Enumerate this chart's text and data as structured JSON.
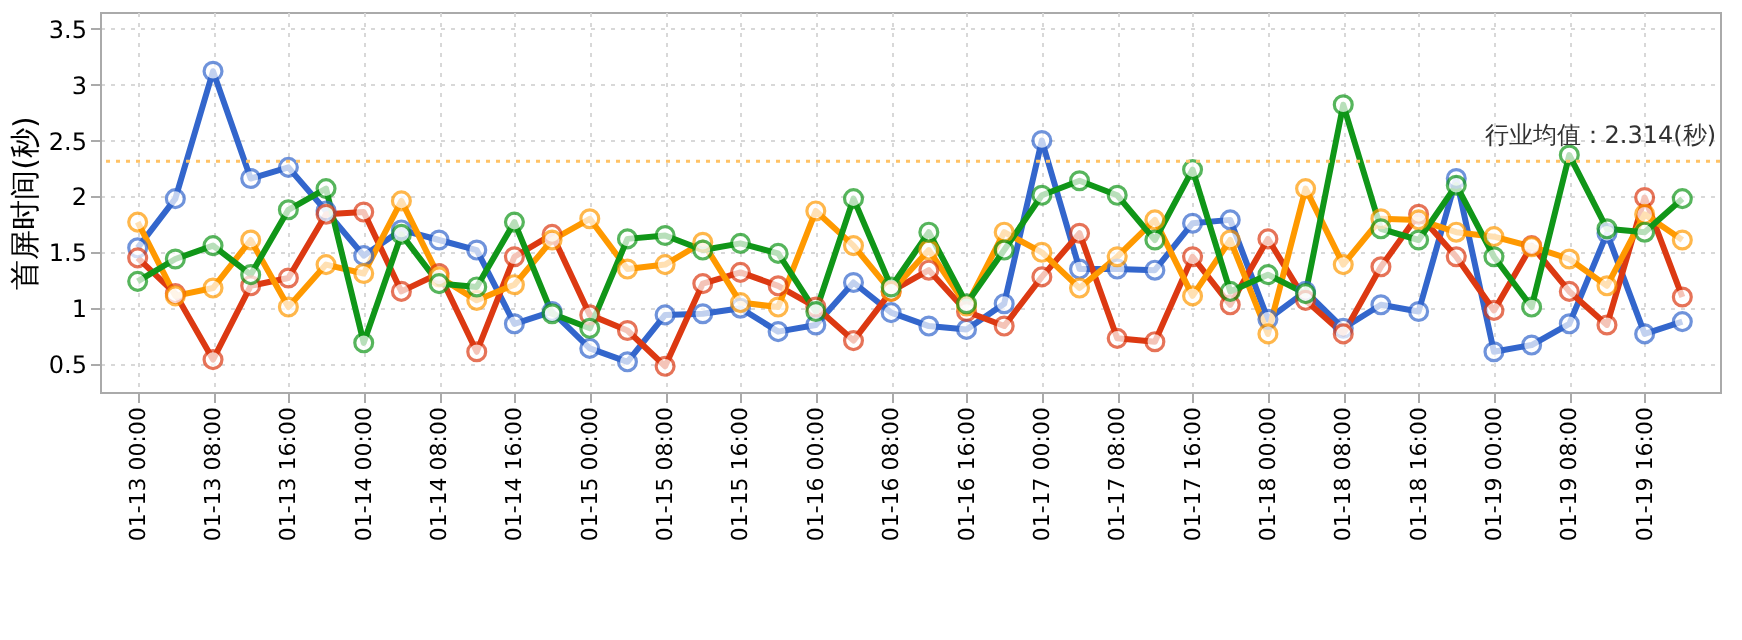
{
  "chart_data": {
    "type": "line",
    "ylabel": "首屏时间(秒)",
    "categories": [
      "01-13 00:00",
      null,
      "01-13 08:00",
      null,
      "01-13 16:00",
      null,
      "01-14 00:00",
      null,
      "01-14 08:00",
      null,
      "01-14 16:00",
      null,
      "01-15 00:00",
      null,
      "01-15 08:00",
      null,
      "01-15 16:00",
      null,
      "01-16 00:00",
      null,
      "01-16 08:00",
      null,
      "01-16 16:00",
      null,
      "01-17 00:00",
      null,
      "01-17 08:00",
      null,
      "01-17 16:00",
      null,
      "01-18 00:00",
      null,
      "01-18 08:00",
      null,
      "01-18 16:00",
      null,
      "01-19 00:00",
      null,
      "01-19 08:00",
      null,
      "01-19 16:00",
      null
    ],
    "series": [
      {
        "color": "#3366cc",
        "values": [
          1.54,
          1.98,
          3.12,
          2.16,
          2.26,
          1.87,
          1.47,
          1.7,
          1.61,
          1.52,
          0.86,
          0.97,
          0.64,
          0.52,
          0.94,
          0.95,
          1.0,
          0.79,
          0.85,
          1.23,
          0.96,
          0.84,
          0.81,
          1.04,
          2.5,
          1.35,
          1.35,
          1.34,
          1.76,
          1.79,
          0.9,
          1.15,
          0.82,
          1.03,
          0.97,
          2.16,
          0.61,
          0.67,
          0.86,
          1.67,
          0.77,
          0.88
        ]
      },
      {
        "color": "#dc3912",
        "values": [
          1.45,
          1.13,
          0.54,
          1.2,
          1.27,
          1.84,
          1.86,
          1.15,
          1.31,
          0.61,
          1.46,
          1.66,
          0.94,
          0.8,
          0.48,
          1.22,
          1.32,
          1.2,
          1.01,
          0.71,
          1.15,
          1.34,
          0.97,
          0.84,
          1.28,
          1.67,
          0.73,
          0.7,
          1.46,
          1.03,
          1.62,
          1.07,
          0.77,
          1.37,
          1.84,
          1.46,
          0.98,
          1.56,
          1.15,
          0.85,
          1.99,
          1.1
        ]
      },
      {
        "color": "#ff9900",
        "values": [
          1.77,
          1.11,
          1.18,
          1.61,
          1.01,
          1.39,
          1.31,
          1.96,
          1.28,
          1.07,
          1.21,
          1.61,
          1.8,
          1.35,
          1.39,
          1.59,
          1.05,
          1.01,
          1.87,
          1.56,
          1.15,
          1.52,
          1.02,
          1.68,
          1.5,
          1.18,
          1.46,
          1.79,
          1.11,
          1.61,
          0.77,
          2.07,
          1.39,
          1.8,
          1.79,
          1.68,
          1.64,
          1.55,
          1.44,
          1.2,
          1.84,
          1.61
        ]
      },
      {
        "color": "#109618",
        "values": [
          1.24,
          1.44,
          1.56,
          1.3,
          1.88,
          2.07,
          0.69,
          1.66,
          1.22,
          1.19,
          1.77,
          0.95,
          0.82,
          1.62,
          1.65,
          1.52,
          1.58,
          1.49,
          0.97,
          1.98,
          1.19,
          1.68,
          1.04,
          1.52,
          2.01,
          2.14,
          2.01,
          1.61,
          2.24,
          1.15,
          1.3,
          1.13,
          2.82,
          1.71,
          1.61,
          2.1,
          1.46,
          1.01,
          2.37,
          1.71,
          1.68,
          1.98
        ]
      }
    ],
    "ylim": [
      0.25,
      3.65
    ],
    "yticks": [
      0.5,
      1,
      1.5,
      2,
      2.5,
      3,
      3.5
    ],
    "grid": true,
    "marker": "circle",
    "line_style": "solid",
    "ref_lines": [
      {
        "axis": "y",
        "value": 2.314,
        "label": "行业均值：2.314(秒)",
        "color": "#ffc266",
        "line_style": "dotted"
      }
    ]
  }
}
